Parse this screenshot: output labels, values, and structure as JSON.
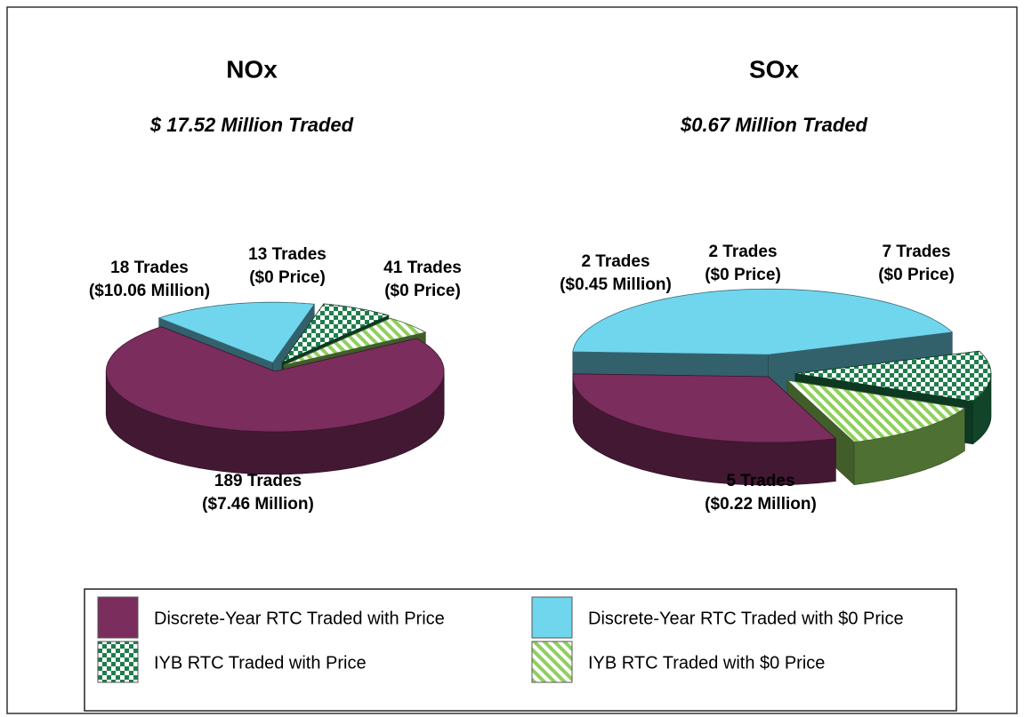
{
  "chart_data": [
    {
      "type": "pie",
      "title": "NOx",
      "subtitle": "$ 17.52 Million Traded",
      "values": [
        189,
        41,
        18,
        13
      ],
      "value_labels": [
        "189 Trades",
        "41 Trades",
        "18 Trades",
        "13 Trades"
      ],
      "value_sublabels": [
        "($7.46 Million)",
        "($0 Price)",
        "($10.06 Million)",
        "($0 Price)"
      ],
      "start_angle": 57
    },
    {
      "type": "pie",
      "title": "SOx",
      "subtitle": "$0.67 Million Traded",
      "values": [
        5,
        7,
        2,
        2
      ],
      "value_labels": [
        "5 Trades",
        "7 Trades",
        "2 Trades",
        "2 Trades"
      ],
      "value_sublabels": [
        "($0.22 Million)",
        "($0 Price)",
        "($0.45 Million)",
        "($0 Price)"
      ],
      "start_angle": 160
    }
  ],
  "legend": {
    "entries": [
      "Discrete-Year RTC Traded with Price",
      "Discrete-Year RTC Traded with $0 Price",
      "IYB RTC Traded with Price",
      "IYB RTC Traded with $0 Price"
    ],
    "colors": [
      "#7b2d5e",
      "#70d6ee",
      "#1f7d4c",
      "#8fcf5e"
    ],
    "patterns": [
      "solid",
      "solid",
      "checker",
      "stripes"
    ]
  }
}
